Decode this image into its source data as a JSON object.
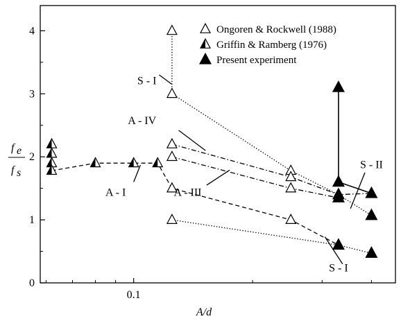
{
  "chart_data": {
    "type": "scatter",
    "x_scale": "log",
    "xlim": [
      0.058,
      0.46
    ],
    "ylim": [
      0,
      4.4
    ],
    "xlabel": "A/d",
    "ylabel_numerator": "f",
    "ylabel_numerator_sub": "e",
    "ylabel_denominator": "f",
    "ylabel_denominator_sub": "s",
    "x_ticks": [
      {
        "value": 0.1,
        "label": "0.1"
      }
    ],
    "x_minor_ticks": [
      0.06,
      0.07,
      0.08,
      0.09,
      0.2,
      0.3,
      0.4
    ],
    "y_ticks": [
      {
        "value": 0,
        "label": "0"
      },
      {
        "value": 1,
        "label": "1"
      },
      {
        "value": 2,
        "label": "2"
      },
      {
        "value": 3,
        "label": "3"
      },
      {
        "value": 4,
        "label": "4"
      }
    ],
    "legend_position": "top-right",
    "series": [
      {
        "name": "Ongoren & Rockwell (1988)",
        "marker": "open-triangle",
        "points": [
          {
            "x": 0.125,
            "y": 4.0
          },
          {
            "x": 0.125,
            "y": 3.0
          },
          {
            "x": 0.125,
            "y": 2.2
          },
          {
            "x": 0.125,
            "y": 2.0
          },
          {
            "x": 0.125,
            "y": 1.5
          },
          {
            "x": 0.125,
            "y": 1.0
          },
          {
            "x": 0.25,
            "y": 1.78
          },
          {
            "x": 0.25,
            "y": 1.68
          },
          {
            "x": 0.25,
            "y": 1.5
          },
          {
            "x": 0.25,
            "y": 1.0
          }
        ]
      },
      {
        "name": "Griffin & Ramberg (1976)",
        "marker": "half-filled-triangle",
        "points": [
          {
            "x": 0.062,
            "y": 2.2
          },
          {
            "x": 0.062,
            "y": 2.05
          },
          {
            "x": 0.062,
            "y": 1.9
          },
          {
            "x": 0.062,
            "y": 1.78
          },
          {
            "x": 0.08,
            "y": 1.9
          },
          {
            "x": 0.1,
            "y": 1.9
          },
          {
            "x": 0.115,
            "y": 1.9
          }
        ]
      },
      {
        "name": "Present experiment",
        "marker": "filled-triangle",
        "points": [
          {
            "x": 0.33,
            "y": 3.1
          },
          {
            "x": 0.33,
            "y": 1.6
          },
          {
            "x": 0.33,
            "y": 1.4
          },
          {
            "x": 0.33,
            "y": 1.35
          },
          {
            "x": 0.33,
            "y": 0.6
          },
          {
            "x": 0.4,
            "y": 1.42
          },
          {
            "x": 0.4,
            "y": 1.07
          },
          {
            "x": 0.4,
            "y": 0.47
          }
        ]
      }
    ],
    "lines": [
      {
        "style": "solid",
        "points": [
          [
            0.33,
            3.1
          ],
          [
            0.33,
            1.6
          ]
        ]
      },
      {
        "style": "solid",
        "points": [
          [
            0.33,
            1.6
          ],
          [
            0.4,
            1.42
          ]
        ]
      },
      {
        "style": "dotted",
        "points": [
          [
            0.125,
            4.0
          ],
          [
            0.125,
            3.0
          ]
        ]
      },
      {
        "style": "dotted",
        "points": [
          [
            0.125,
            3.0
          ],
          [
            0.25,
            1.78
          ],
          [
            0.33,
            1.4
          ],
          [
            0.4,
            1.07
          ]
        ]
      },
      {
        "style": "dashdot",
        "points": [
          [
            0.125,
            2.2
          ],
          [
            0.25,
            1.68
          ],
          [
            0.33,
            1.4
          ],
          [
            0.4,
            1.42
          ]
        ]
      },
      {
        "style": "dashdot",
        "points": [
          [
            0.125,
            2.0
          ],
          [
            0.25,
            1.5
          ],
          [
            0.33,
            1.35
          ]
        ]
      },
      {
        "style": "dashed",
        "points": [
          [
            0.062,
            1.78
          ],
          [
            0.08,
            1.9
          ],
          [
            0.1,
            1.9
          ],
          [
            0.115,
            1.9
          ],
          [
            0.125,
            1.5
          ],
          [
            0.25,
            1.0
          ],
          [
            0.33,
            0.6
          ]
        ]
      },
      {
        "style": "dotted",
        "points": [
          [
            0.125,
            1.0
          ],
          [
            0.33,
            0.6
          ],
          [
            0.4,
            0.47
          ]
        ]
      }
    ],
    "annotations": [
      {
        "text": "S - I",
        "x": 0.108,
        "y": 3.15,
        "pointer": [
          [
            0.116,
            3.3
          ],
          [
            0.125,
            3.15
          ]
        ]
      },
      {
        "text": "A - IV",
        "x": 0.105,
        "y": 2.52,
        "pointer": [
          [
            0.13,
            2.42
          ],
          [
            0.152,
            2.1
          ]
        ]
      },
      {
        "text": "A - I",
        "x": 0.09,
        "y": 1.38,
        "pointer": [
          [
            0.1,
            1.6
          ],
          [
            0.104,
            1.87
          ]
        ]
      },
      {
        "text": "A - III",
        "x": 0.137,
        "y": 1.38,
        "pointer": [
          [
            0.153,
            1.55
          ],
          [
            0.175,
            1.79
          ]
        ]
      },
      {
        "text": "S - II",
        "x": 0.4,
        "y": 1.82,
        "pointer": [
          [
            0.385,
            1.75
          ],
          [
            0.354,
            1.18
          ]
        ]
      },
      {
        "text": "S - I",
        "x": 0.33,
        "y": 0.18,
        "pointer": [
          [
            0.338,
            0.3
          ],
          [
            0.305,
            0.73
          ]
        ]
      }
    ]
  }
}
